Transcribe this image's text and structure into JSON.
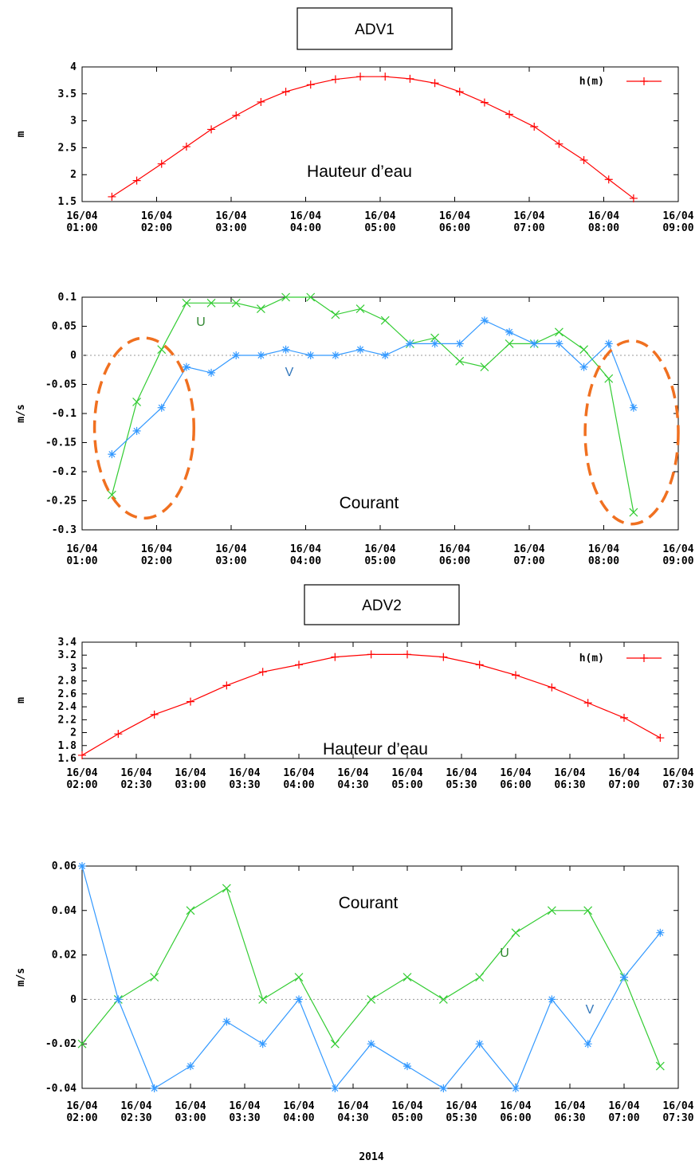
{
  "sections": [
    {
      "title": "ADV1"
    },
    {
      "title": "ADV2"
    }
  ],
  "x_axis_label": "2014",
  "chart_data": [
    {
      "type": "line",
      "annotation": "Hauteur d’eau",
      "ylabel": "m",
      "xlim": [
        "2014-04-16 01:00",
        "2014-04-16 09:00"
      ],
      "ylim": [
        1.5,
        4
      ],
      "y_ticks": [
        "1.5",
        "2",
        "2.5",
        "3",
        "3.5",
        "4"
      ],
      "x_ticks": [
        {
          "date": "16/04",
          "time": "01:00"
        },
        {
          "date": "16/04",
          "time": "02:00"
        },
        {
          "date": "16/04",
          "time": "03:00"
        },
        {
          "date": "16/04",
          "time": "04:00"
        },
        {
          "date": "16/04",
          "time": "05:00"
        },
        {
          "date": "16/04",
          "time": "06:00"
        },
        {
          "date": "16/04",
          "time": "07:00"
        },
        {
          "date": "16/04",
          "time": "08:00"
        },
        {
          "date": "16/04",
          "time": "09:00"
        }
      ],
      "legend": "top-right",
      "series": [
        {
          "name": "h(m)",
          "color": "#ff0000",
          "marker": "plus",
          "x": [
            "01:24",
            "01:44",
            "02:04",
            "02:24",
            "02:44",
            "03:04",
            "03:24",
            "03:44",
            "04:04",
            "04:24",
            "04:44",
            "05:04",
            "05:24",
            "05:44",
            "06:04",
            "06:24",
            "06:44",
            "07:04",
            "07:24",
            "07:44",
            "08:04",
            "08:24"
          ],
          "y": [
            1.59,
            1.89,
            2.2,
            2.52,
            2.84,
            3.1,
            3.35,
            3.54,
            3.67,
            3.77,
            3.82,
            3.82,
            3.78,
            3.7,
            3.54,
            3.34,
            3.12,
            2.89,
            2.57,
            2.27,
            1.91,
            1.56
          ]
        }
      ]
    },
    {
      "type": "line",
      "annotation": "Courant",
      "ylabel": "m/s",
      "xlim": [
        "2014-04-16 01:00",
        "2014-04-16 09:00"
      ],
      "ylim": [
        -0.3,
        0.1
      ],
      "y_ticks": [
        "0.1",
        "0.05",
        "0",
        "-0.05",
        "-0.1",
        "-0.15",
        "-0.2",
        "-0.25",
        "-0.3"
      ],
      "x_ticks": [
        {
          "date": "16/04",
          "time": "01:00"
        },
        {
          "date": "16/04",
          "time": "02:00"
        },
        {
          "date": "16/04",
          "time": "03:00"
        },
        {
          "date": "16/04",
          "time": "04:00"
        },
        {
          "date": "16/04",
          "time": "05:00"
        },
        {
          "date": "16/04",
          "time": "06:00"
        },
        {
          "date": "16/04",
          "time": "07:00"
        },
        {
          "date": "16/04",
          "time": "08:00"
        },
        {
          "date": "16/04",
          "time": "09:00"
        }
      ],
      "zero_line": true,
      "series": [
        {
          "name": "U",
          "color": "#33cc33",
          "label_color": "#338833",
          "marker": "x",
          "x": [
            "01:24",
            "01:44",
            "02:04",
            "02:24",
            "02:44",
            "03:04",
            "03:24",
            "03:44",
            "04:04",
            "04:24",
            "04:44",
            "05:04",
            "05:24",
            "05:44",
            "06:04",
            "06:24",
            "06:44",
            "07:04",
            "07:24",
            "07:44",
            "08:04",
            "08:24"
          ],
          "y": [
            -0.24,
            -0.08,
            0.01,
            0.09,
            0.09,
            0.09,
            0.08,
            0.1,
            0.1,
            0.07,
            0.08,
            0.06,
            0.02,
            0.03,
            -0.01,
            -0.02,
            0.02,
            0.02,
            0.04,
            0.01,
            -0.04,
            -0.27
          ]
        },
        {
          "name": "V",
          "color": "#3399ff",
          "label_color": "#3377bb",
          "marker": "star",
          "x": [
            "01:24",
            "01:44",
            "02:04",
            "02:24",
            "02:44",
            "03:04",
            "03:24",
            "03:44",
            "04:04",
            "04:24",
            "04:44",
            "05:04",
            "05:24",
            "05:44",
            "06:04",
            "06:24",
            "06:44",
            "07:04",
            "07:24",
            "07:44",
            "08:04",
            "08:24"
          ],
          "y": [
            -0.17,
            -0.13,
            -0.09,
            -0.02,
            -0.03,
            0.0,
            0.0,
            0.01,
            0.0,
            0.0,
            0.01,
            0.0,
            0.02,
            0.02,
            0.02,
            0.06,
            0.04,
            0.02,
            0.02,
            -0.02,
            0.02,
            -0.09
          ]
        }
      ],
      "highlights": [
        {
          "x_range": [
            "01:10",
            "02:30"
          ],
          "y_range": [
            -0.28,
            0.03
          ],
          "color": "#f07020"
        },
        {
          "x_range": [
            "07:45",
            "09:00"
          ],
          "y_range": [
            -0.29,
            0.025
          ],
          "color": "#f07020"
        }
      ]
    },
    {
      "type": "line",
      "annotation": "Hauteur d’eau",
      "ylabel": "m",
      "xlim": [
        "2014-04-16 02:00",
        "2014-04-16 07:30"
      ],
      "ylim": [
        1.6,
        3.4
      ],
      "y_ticks": [
        "3.4",
        "3.2",
        "3",
        "2.8",
        "2.6",
        "2.4",
        "2.2",
        "2",
        "1.8",
        "1.6"
      ],
      "x_ticks": [
        {
          "date": "16/04",
          "time": "02:00"
        },
        {
          "date": "16/04",
          "time": "02:30"
        },
        {
          "date": "16/04",
          "time": "03:00"
        },
        {
          "date": "16/04",
          "time": "03:30"
        },
        {
          "date": "16/04",
          "time": "04:00"
        },
        {
          "date": "16/04",
          "time": "04:30"
        },
        {
          "date": "16/04",
          "time": "05:00"
        },
        {
          "date": "16/04",
          "time": "05:30"
        },
        {
          "date": "16/04",
          "time": "06:00"
        },
        {
          "date": "16/04",
          "time": "06:30"
        },
        {
          "date": "16/04",
          "time": "07:00"
        },
        {
          "date": "16/04",
          "time": "07:30"
        }
      ],
      "legend": "top-right",
      "series": [
        {
          "name": "h(m)",
          "color": "#ff0000",
          "marker": "plus",
          "x": [
            "02:00",
            "02:20",
            "02:40",
            "03:00",
            "03:20",
            "03:40",
            "04:00",
            "04:20",
            "04:40",
            "05:00",
            "05:20",
            "05:40",
            "06:00",
            "06:20",
            "06:40",
            "07:00",
            "07:20"
          ],
          "y": [
            1.65,
            1.98,
            2.28,
            2.48,
            2.73,
            2.94,
            3.05,
            3.17,
            3.21,
            3.21,
            3.17,
            3.05,
            2.89,
            2.7,
            2.46,
            2.23,
            1.92
          ]
        }
      ]
    },
    {
      "type": "line",
      "annotation": "Courant",
      "ylabel": "m/s",
      "xlim": [
        "2014-04-16 02:00",
        "2014-04-16 07:30"
      ],
      "ylim": [
        -0.04,
        0.06
      ],
      "y_ticks": [
        "0.06",
        "0.04",
        "0.02",
        "0",
        "-0.02",
        "-0.04"
      ],
      "x_ticks": [
        {
          "date": "16/04",
          "time": "02:00"
        },
        {
          "date": "16/04",
          "time": "02:30"
        },
        {
          "date": "16/04",
          "time": "03:00"
        },
        {
          "date": "16/04",
          "time": "03:30"
        },
        {
          "date": "16/04",
          "time": "04:00"
        },
        {
          "date": "16/04",
          "time": "04:30"
        },
        {
          "date": "16/04",
          "time": "05:00"
        },
        {
          "date": "16/04",
          "time": "05:30"
        },
        {
          "date": "16/04",
          "time": "06:00"
        },
        {
          "date": "16/04",
          "time": "06:30"
        },
        {
          "date": "16/04",
          "time": "07:00"
        },
        {
          "date": "16/04",
          "time": "07:30"
        }
      ],
      "zero_line": true,
      "series": [
        {
          "name": "U",
          "color": "#33cc33",
          "label_color": "#338833",
          "marker": "x",
          "x": [
            "02:00",
            "02:20",
            "02:40",
            "03:00",
            "03:20",
            "03:40",
            "04:00",
            "04:20",
            "04:40",
            "05:00",
            "05:20",
            "05:40",
            "06:00",
            "06:20",
            "06:40",
            "07:00",
            "07:20"
          ],
          "y": [
            -0.02,
            0.0,
            0.01,
            0.04,
            0.05,
            0.0,
            0.01,
            -0.02,
            0.0,
            0.01,
            0.0,
            0.01,
            0.03,
            0.04,
            0.04,
            0.01,
            -0.03
          ]
        },
        {
          "name": "V",
          "color": "#3399ff",
          "label_color": "#3377bb",
          "marker": "star",
          "x": [
            "02:00",
            "02:20",
            "02:40",
            "03:00",
            "03:20",
            "03:40",
            "04:00",
            "04:20",
            "04:40",
            "05:00",
            "05:20",
            "05:40",
            "06:00",
            "06:20",
            "06:40",
            "07:00",
            "07:20"
          ],
          "y": [
            0.06,
            0.0,
            -0.04,
            -0.03,
            -0.01,
            -0.02,
            0.0,
            -0.04,
            -0.02,
            -0.03,
            -0.04,
            -0.02,
            -0.04,
            0.0,
            -0.02,
            0.01,
            0.03
          ]
        }
      ]
    }
  ]
}
